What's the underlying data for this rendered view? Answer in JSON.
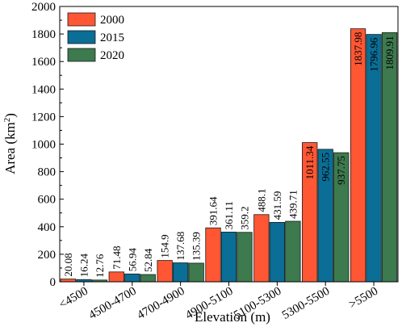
{
  "chart_data": {
    "type": "bar",
    "xlabel": "Elevation (m)",
    "ylabel_main": "Area (km",
    "ylabel_sup": "2",
    "ylabel_close": ")",
    "ylim": [
      0,
      2000
    ],
    "yticks": [
      0,
      200,
      400,
      600,
      800,
      1000,
      1200,
      1400,
      1600,
      1800,
      2000
    ],
    "grid": false,
    "legend_position": "top-left",
    "categories": [
      "<4500",
      "4500-4700",
      "4700-4900",
      "4900-5100",
      "5100-5300",
      "5300-5500",
      ">5500"
    ],
    "series": [
      {
        "name": "2000",
        "color": "#FF5733",
        "values": [
          20.08,
          71.48,
          154.9,
          391.64,
          488.1,
          1011.34,
          1837.98
        ],
        "labels": [
          "20.08",
          "71.48",
          "154.9",
          "391.64",
          "488.1",
          "1011.34",
          "1837.98"
        ]
      },
      {
        "name": "2015",
        "color": "#0A6E96",
        "values": [
          16.24,
          56.94,
          137.68,
          361.11,
          431.59,
          962.55,
          1796.96
        ],
        "labels": [
          "16.24",
          "56.94",
          "137.68",
          "361.11",
          "431.59",
          "962.55",
          "1796.96"
        ]
      },
      {
        "name": "2020",
        "color": "#3D7A4E",
        "values": [
          12.76,
          52.84,
          135.39,
          359.2,
          439.71,
          937.75,
          1809.91
        ],
        "labels": [
          "12.76",
          "52.84",
          "135.39",
          "359.2",
          "439.71",
          "937.75",
          "1809.91"
        ]
      }
    ]
  }
}
